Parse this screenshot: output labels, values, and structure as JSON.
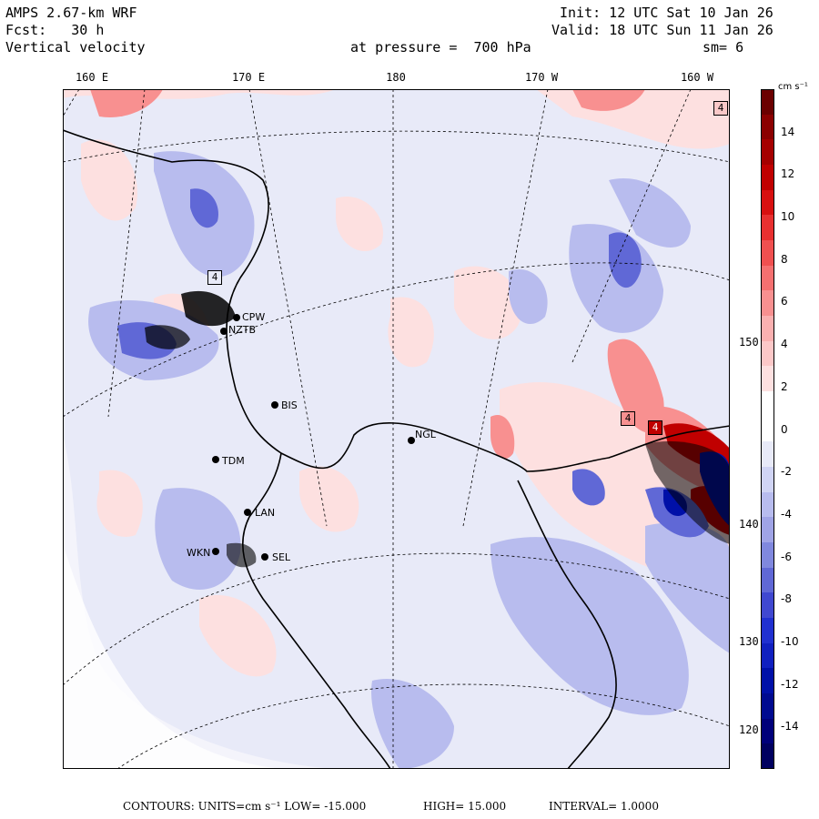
{
  "header": {
    "model": "AMPS 2.67-km WRF",
    "init": "Init: 12 UTC Sat 10 Jan 26",
    "fcst": "Fcst:   30 h",
    "valid": "Valid: 18 UTC Sun 11 Jan 26",
    "field": "Vertical velocity",
    "pressure": "at pressure =  700 hPa",
    "smoothing": "sm= 6"
  },
  "top_labels": [
    "160 E",
    "170 E",
    "180",
    "170 W",
    "160 W"
  ],
  "right_labels": [
    "150 W",
    "140 W",
    "130 W",
    "120 W"
  ],
  "colorbar": {
    "unit": "cm s⁻¹",
    "tick_labels": [
      "14",
      "12",
      "10",
      "8",
      "6",
      "4",
      "2",
      "0",
      "-2",
      "-4",
      "-6",
      "-8",
      "-10",
      "-12",
      "-14"
    ],
    "colors": [
      "#6b0000",
      "#8b0000",
      "#a50000",
      "#c00000",
      "#d81010",
      "#e83030",
      "#f05050",
      "#f57070",
      "#f89090",
      "#fab0b0",
      "#fcc8c8",
      "#fde0e0",
      "#ffffff",
      "#ffffff",
      "#e8eaf8",
      "#d0d4f4",
      "#b8bcee",
      "#a0a4e6",
      "#8088de",
      "#6068d6",
      "#4048d0",
      "#2030d0",
      "#1020c0",
      "#0010a8",
      "#000a90",
      "#00007a",
      "#000060"
    ]
  },
  "stations": [
    "CPW",
    "NZTB",
    "BIS",
    "NGL",
    "TDM",
    "LAN",
    "WKN",
    "SEL"
  ],
  "box_marks": [
    "4",
    "4",
    "4",
    "4"
  ],
  "footer": {
    "contours": "CONTOURS:  UNITS=cm s⁻¹  LOW= -15.000",
    "high": "HIGH=  15.000",
    "interval": "INTERVAL=  1.0000"
  },
  "colors": {
    "background": "#e8eaf8",
    "positive": "#fac8c8",
    "negative": "#8088de"
  }
}
